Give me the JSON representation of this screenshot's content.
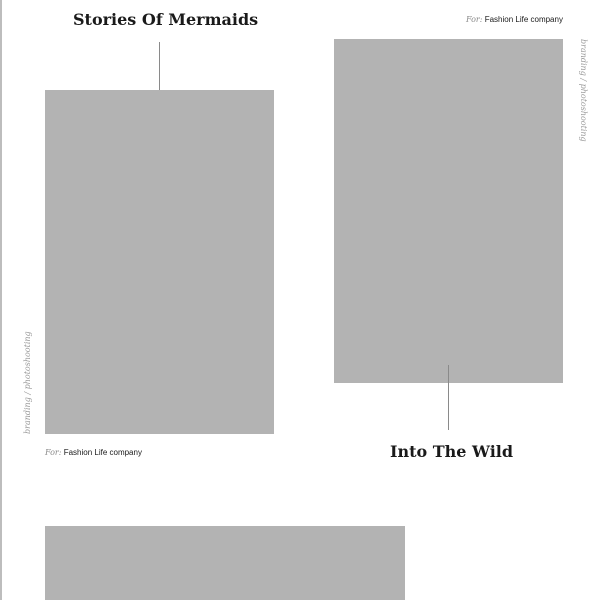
{
  "projects": [
    {
      "title": "Stories Of Mermaids",
      "client_prefix": "For:",
      "client_name": "Fashion Life company",
      "category": "branding / photoshooting"
    },
    {
      "title": "Into The Wild",
      "client_prefix": "For:",
      "client_name": "Fashion Life company",
      "category": "branding / photoshooting"
    }
  ],
  "colors": {
    "image_placeholder": "#b3b3b3",
    "title_text": "#1a1a1a",
    "meta_text": "#9a9a9a",
    "connector": "#8a8a8a"
  }
}
